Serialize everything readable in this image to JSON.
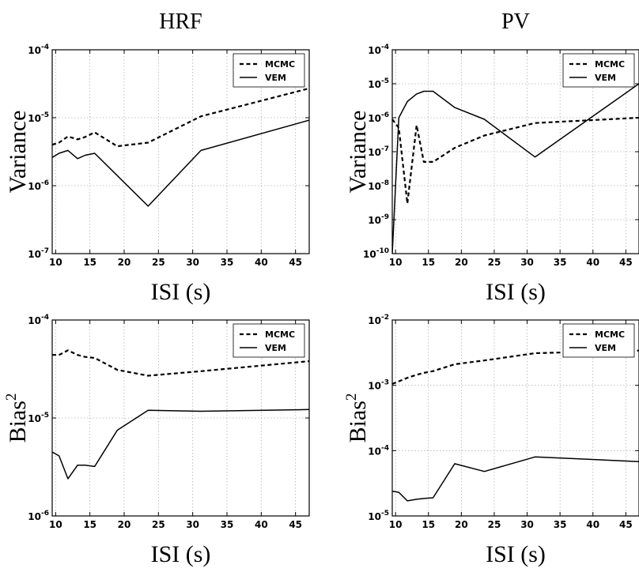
{
  "chart_data": [
    {
      "type": "line",
      "column_title": "HRF",
      "xlabel": "ISI (s)",
      "ylabel": "Variance",
      "ylabel_superscript": "",
      "yscale": "log",
      "xlim": [
        9.5,
        47
      ],
      "ylim": [
        1e-07,
        0.0001
      ],
      "xticks": [
        10,
        15,
        20,
        25,
        30,
        35,
        40,
        45
      ],
      "yticks": [
        {
          "value": 1e-07,
          "base": "10",
          "exp": "-7"
        },
        {
          "value": 1e-06,
          "base": "10",
          "exp": "-6"
        },
        {
          "value": 1e-05,
          "base": "10",
          "exp": "-5"
        },
        {
          "value": 0.0001,
          "base": "10",
          "exp": "-4"
        }
      ],
      "grid": true,
      "legend": "top-right",
      "series": [
        {
          "name": "MCMC",
          "dash": true,
          "x": [
            9.5,
            10.5,
            11.8,
            13.2,
            14.3,
            15.7,
            19,
            23.5,
            31.2,
            47
          ],
          "y": [
            4e-06,
            4.3e-06,
            5.3e-06,
            4.8e-06,
            5.2e-06,
            6.1e-06,
            3.8e-06,
            4.3e-06,
            1.05e-05,
            2.7e-05
          ]
        },
        {
          "name": "VEM",
          "dash": false,
          "x": [
            9.5,
            10.5,
            11.8,
            13.2,
            14.3,
            15.7,
            23.5,
            31.2,
            47
          ],
          "y": [
            2.6e-06,
            3e-06,
            3.3e-06,
            2.5e-06,
            2.8e-06,
            3e-06,
            5e-07,
            3.3e-06,
            9.2e-06
          ]
        }
      ]
    },
    {
      "type": "line",
      "column_title": "PV",
      "xlabel": "ISI (s)",
      "ylabel": "Variance",
      "ylabel_superscript": "",
      "yscale": "log",
      "xlim": [
        9.5,
        47
      ],
      "ylim": [
        1e-10,
        0.0001
      ],
      "xticks": [
        10,
        15,
        20,
        25,
        30,
        35,
        40,
        45
      ],
      "yticks": [
        {
          "value": 1e-10,
          "base": "10",
          "exp": "-10"
        },
        {
          "value": 1e-09,
          "base": "10",
          "exp": "-9"
        },
        {
          "value": 1e-08,
          "base": "10",
          "exp": "-8"
        },
        {
          "value": 1e-07,
          "base": "10",
          "exp": "-7"
        },
        {
          "value": 1e-06,
          "base": "10",
          "exp": "-6"
        },
        {
          "value": 1e-05,
          "base": "10",
          "exp": "-5"
        },
        {
          "value": 0.0001,
          "base": "10",
          "exp": "-4"
        }
      ],
      "grid": true,
      "legend": "top-right",
      "series": [
        {
          "name": "MCMC",
          "dash": true,
          "x": [
            9.5,
            10.5,
            11.8,
            13.2,
            14.3,
            15.7,
            19,
            23.5,
            31.2,
            47
          ],
          "y": [
            9e-07,
            5e-07,
            3e-09,
            6e-07,
            5e-08,
            5e-08,
            1.3e-07,
            3e-07,
            7e-07,
            1e-06
          ]
        },
        {
          "name": "VEM",
          "dash": false,
          "x": [
            9.5,
            10.5,
            11.8,
            13.2,
            14.3,
            15.7,
            19,
            23.5,
            31.2,
            47
          ],
          "y": [
            1e-10,
            1e-06,
            3e-06,
            5e-06,
            6e-06,
            6e-06,
            2e-06,
            9e-07,
            7e-08,
            1e-05
          ]
        }
      ]
    },
    {
      "type": "line",
      "column_title": "",
      "xlabel": "ISI (s)",
      "ylabel": "Bias",
      "ylabel_superscript": "2",
      "yscale": "log",
      "xlim": [
        9.5,
        47
      ],
      "ylim": [
        1e-06,
        0.0001
      ],
      "xticks": [
        10,
        15,
        20,
        25,
        30,
        35,
        40,
        45
      ],
      "yticks": [
        {
          "value": 1e-06,
          "base": "10",
          "exp": "-6"
        },
        {
          "value": 1e-05,
          "base": "10",
          "exp": "-5"
        },
        {
          "value": 0.0001,
          "base": "10",
          "exp": "-4"
        }
      ],
      "grid": true,
      "legend": "top-right",
      "series": [
        {
          "name": "MCMC",
          "dash": true,
          "x": [
            9.5,
            10.5,
            11.8,
            13.2,
            14.3,
            15.7,
            19,
            23.5,
            31.2,
            47
          ],
          "y": [
            4.4e-05,
            4.4e-05,
            4.9e-05,
            4.4e-05,
            4.2e-05,
            4.1e-05,
            3.1e-05,
            2.7e-05,
            3e-05,
            3.8e-05
          ]
        },
        {
          "name": "VEM",
          "dash": false,
          "x": [
            9.5,
            10.5,
            11.8,
            13.2,
            14.3,
            15.7,
            19,
            23.5,
            31.2,
            47
          ],
          "y": [
            4.5e-06,
            4.1e-06,
            2.4e-06,
            3.3e-06,
            3.3e-06,
            3.2e-06,
            7.5e-06,
            1.2e-05,
            1.17e-05,
            1.22e-05
          ]
        }
      ]
    },
    {
      "type": "line",
      "column_title": "",
      "xlabel": "ISI (s)",
      "ylabel": "Bias",
      "ylabel_superscript": "2",
      "yscale": "log",
      "xlim": [
        9.5,
        47
      ],
      "ylim": [
        1e-05,
        0.01
      ],
      "xticks": [
        10,
        15,
        20,
        25,
        30,
        35,
        40,
        45
      ],
      "yticks": [
        {
          "value": 1e-05,
          "base": "10",
          "exp": "-5"
        },
        {
          "value": 0.0001,
          "base": "10",
          "exp": "-4"
        },
        {
          "value": 0.001,
          "base": "10",
          "exp": "-3"
        },
        {
          "value": 0.01,
          "base": "10",
          "exp": "-2"
        }
      ],
      "grid": true,
      "legend": "top-right",
      "series": [
        {
          "name": "MCMC",
          "dash": true,
          "x": [
            9.5,
            10.5,
            11.8,
            13.2,
            14.3,
            15.7,
            19,
            23.5,
            31.2,
            47
          ],
          "y": [
            0.00105,
            0.00115,
            0.0013,
            0.00145,
            0.00155,
            0.00165,
            0.0021,
            0.0024,
            0.0031,
            0.0034
          ]
        },
        {
          "name": "VEM",
          "dash": false,
          "x": [
            9.5,
            10.5,
            11.8,
            13.2,
            14.3,
            15.7,
            19,
            23.5,
            31.2,
            47
          ],
          "y": [
            2.4e-05,
            2.3e-05,
            1.7e-05,
            1.8e-05,
            1.85e-05,
            1.9e-05,
            6.3e-05,
            4.8e-05,
            8e-05,
            6.8e-05
          ]
        }
      ]
    }
  ]
}
